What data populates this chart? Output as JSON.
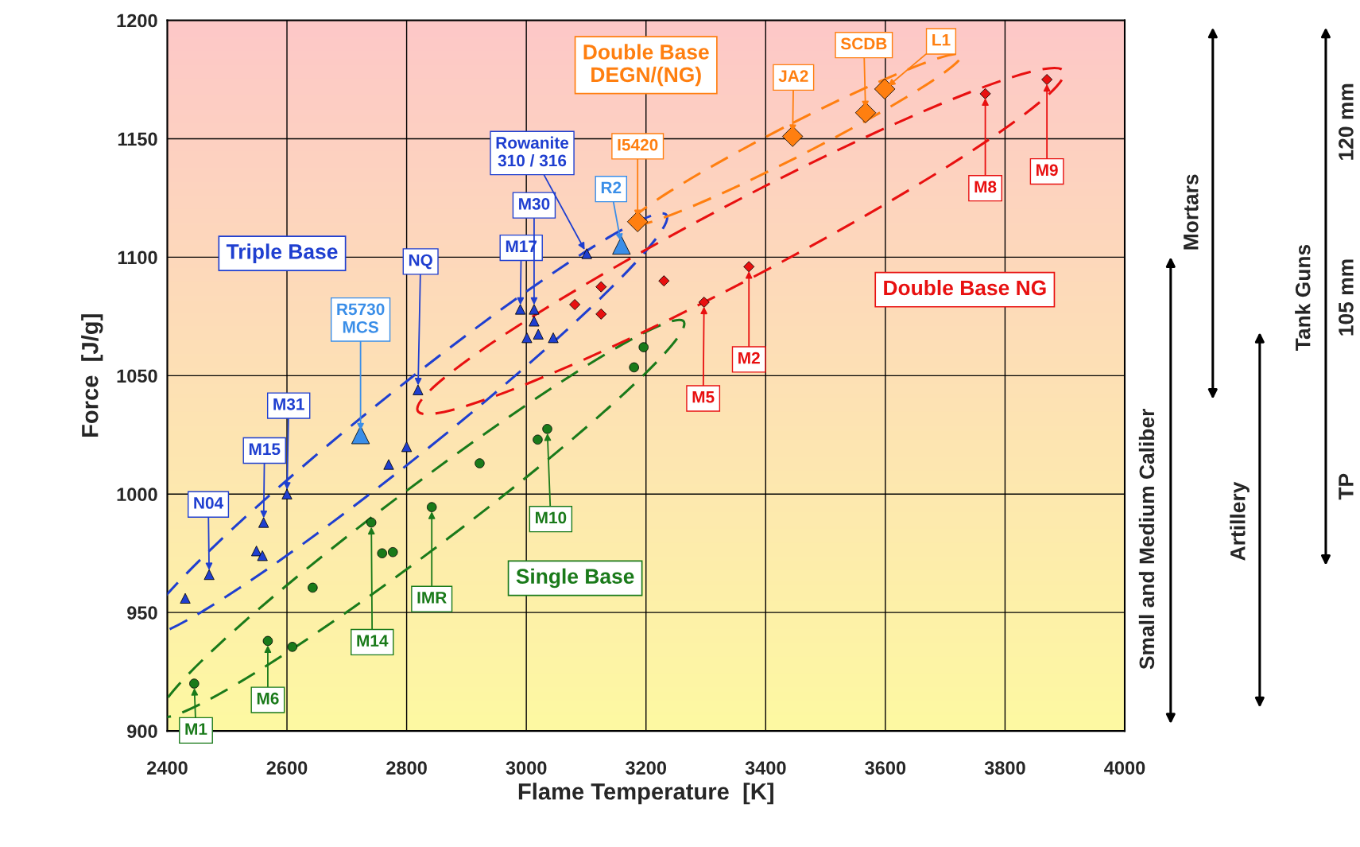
{
  "chart_data": {
    "type": "scatter",
    "xlabel": "Flame Temperature  [K]",
    "ylabel": "Force  [J/g]",
    "xlim": [
      2400,
      4000
    ],
    "xticks": [
      2400,
      2600,
      2800,
      3000,
      3200,
      3400,
      3600,
      3800,
      4000
    ],
    "ylim": [
      900,
      1200
    ],
    "yticks": [
      900,
      950,
      1000,
      1050,
      1100,
      1150,
      1200
    ],
    "grid": true,
    "series": [
      {
        "name": "Single Base",
        "color": "#1a7a1a",
        "marker": "circle",
        "x": [
          2445,
          2568,
          2609,
          2643,
          2741,
          2759,
          2777,
          2842,
          2922,
          3019,
          3035,
          3180,
          3196
        ],
        "values": [
          920,
          938,
          935.5,
          960.5,
          988,
          975,
          975.5,
          994.5,
          1013,
          1023,
          1027.5,
          1053.5,
          1062
        ]
      },
      {
        "name": "Triple Base",
        "color": "#1f3fd0",
        "marker": "triangle",
        "x": [
          2430,
          2470,
          2549,
          2559,
          2561,
          2600,
          2770,
          2800,
          2819,
          2990,
          3001,
          3013,
          3013,
          3020,
          3045,
          3101
        ],
        "values": [
          956,
          966,
          976,
          974,
          988,
          1000,
          1012.5,
          1020,
          1044,
          1078,
          1066,
          1078,
          1073,
          1067.5,
          1066,
          1101.5
        ]
      },
      {
        "color": "#3a8ee8",
        "marker": "triangle",
        "x": [
          2723,
          3159
        ],
        "values": [
          1025,
          1105
        ]
      },
      {
        "name": "Double Base NG",
        "color": "#e81010",
        "marker": "diamond",
        "x": [
          3081,
          3125,
          3125,
          3230,
          3297,
          3372,
          3767,
          3870
        ],
        "values": [
          1080,
          1087.5,
          1076,
          1090,
          1081,
          1096,
          1169,
          1175
        ]
      },
      {
        "name": "Double Base\nDEGN/(NG)",
        "color": "#ff7f10",
        "marker": "diamond",
        "x": [
          3186,
          3445,
          3567,
          3599
        ],
        "values": [
          1115,
          1151,
          1161,
          1171
        ]
      }
    ],
    "annotations": [
      {
        "text": "M1",
        "x": 2445,
        "y": 920
      },
      {
        "text": "M6",
        "x": 2568,
        "y": 938
      },
      {
        "text": "M14",
        "x": 2741,
        "y": 988
      },
      {
        "text": "IMR",
        "x": 2842,
        "y": 994.5
      },
      {
        "text": "M10",
        "x": 3035,
        "y": 1027.5
      },
      {
        "text": "N04",
        "x": 2470,
        "y": 966
      },
      {
        "text": "M15",
        "x": 2561,
        "y": 988
      },
      {
        "text": "M31",
        "x": 2600,
        "y": 1000
      },
      {
        "text": "R5730\nMCS",
        "x": 2723,
        "y": 1025
      },
      {
        "text": "NQ",
        "x": 2819,
        "y": 1044
      },
      {
        "text": "M17",
        "x": 2990,
        "y": 1078
      },
      {
        "text": "M30",
        "x": 3013,
        "y": 1078
      },
      {
        "text": "Rowanite\n310 / 316",
        "x": 3101,
        "y": 1101.5
      },
      {
        "text": "R2",
        "x": 3159,
        "y": 1105
      },
      {
        "text": "I5420",
        "x": 3186,
        "y": 1115
      },
      {
        "text": "JA2",
        "x": 3445,
        "y": 1151
      },
      {
        "text": "SCDB",
        "x": 3567,
        "y": 1161
      },
      {
        "text": "L1",
        "x": 3599,
        "y": 1171
      },
      {
        "text": "M8",
        "x": 3767,
        "y": 1169
      },
      {
        "text": "M9",
        "x": 3870,
        "y": 1175
      },
      {
        "text": "M5",
        "x": 3297,
        "y": 1081
      },
      {
        "text": "M2",
        "x": 3372,
        "y": 1096
      },
      "Small and Medium Caliber",
      "Mortars",
      "Artillery",
      "Tank Guns",
      "120 mm",
      "105 mm",
      "TP"
    ]
  }
}
